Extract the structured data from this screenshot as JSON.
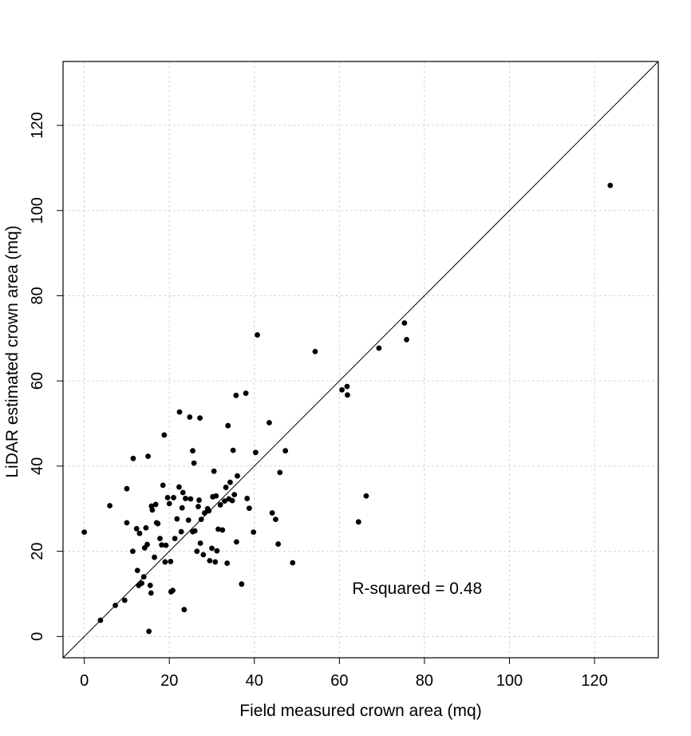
{
  "chart_data": {
    "type": "scatter",
    "title": "",
    "xlabel": "Field measured crown area (mq)",
    "ylabel": "LiDAR estimated crown area (mq)",
    "xlim": [
      -5,
      135
    ],
    "ylim": [
      -5,
      135
    ],
    "xticks": [
      0,
      20,
      40,
      60,
      80,
      100,
      120
    ],
    "yticks": [
      0,
      20,
      40,
      60,
      80,
      100,
      120
    ],
    "grid": true,
    "reference_line": "1:1",
    "annotation": "R-squared = 0.48",
    "annotation_position": [
      63,
      10
    ],
    "points": [
      [
        0,
        24.5
      ],
      [
        3.8,
        3.8
      ],
      [
        6,
        30.7
      ],
      [
        7.3,
        7.3
      ],
      [
        9.5,
        8.5
      ],
      [
        10,
        34.7
      ],
      [
        10,
        26.7
      ],
      [
        11.4,
        20
      ],
      [
        11.5,
        41.8
      ],
      [
        12.3,
        25.3
      ],
      [
        12.5,
        15.5
      ],
      [
        12.8,
        12
      ],
      [
        13,
        24.2
      ],
      [
        13.5,
        12.5
      ],
      [
        14,
        14
      ],
      [
        14.2,
        20.8
      ],
      [
        14.5,
        25.5
      ],
      [
        14.8,
        21.6
      ],
      [
        15,
        42.3
      ],
      [
        15.2,
        1.2
      ],
      [
        15.5,
        12
      ],
      [
        15.7,
        10.2
      ],
      [
        15.8,
        30.6
      ],
      [
        16,
        29.7
      ],
      [
        16.5,
        18.6
      ],
      [
        16.8,
        31
      ],
      [
        17,
        26.7
      ],
      [
        17.3,
        26.5
      ],
      [
        17.8,
        23
      ],
      [
        18.2,
        21.5
      ],
      [
        18.5,
        35.5
      ],
      [
        18.8,
        47.3
      ],
      [
        19,
        17.5
      ],
      [
        19.2,
        21.4
      ],
      [
        19.6,
        32.6
      ],
      [
        20,
        31.2
      ],
      [
        20.3,
        17.6
      ],
      [
        20.4,
        10.5
      ],
      [
        20.8,
        10.8
      ],
      [
        21,
        32.6
      ],
      [
        21.3,
        23
      ],
      [
        21.8,
        27.6
      ],
      [
        22.3,
        35.1
      ],
      [
        22.4,
        52.7
      ],
      [
        22.8,
        24.6
      ],
      [
        23,
        30.2
      ],
      [
        23.2,
        33.8
      ],
      [
        23.5,
        6.3
      ],
      [
        23.8,
        32.4
      ],
      [
        24.5,
        27.3
      ],
      [
        24.8,
        51.5
      ],
      [
        25,
        32.3
      ],
      [
        25.5,
        43.6
      ],
      [
        25.5,
        24.6
      ],
      [
        25.8,
        40.7
      ],
      [
        26,
        24.8
      ],
      [
        26.5,
        20
      ],
      [
        26.8,
        30.5
      ],
      [
        27,
        32
      ],
      [
        27.2,
        51.3
      ],
      [
        27.3,
        21.9
      ],
      [
        27.5,
        27.5
      ],
      [
        28,
        19.2
      ],
      [
        28.3,
        29
      ],
      [
        29,
        30
      ],
      [
        29.3,
        29.5
      ],
      [
        29.5,
        17.8
      ],
      [
        30,
        20.7
      ],
      [
        30.2,
        32.8
      ],
      [
        30.5,
        38.8
      ],
      [
        30.8,
        17.5
      ],
      [
        31,
        33
      ],
      [
        31.2,
        20.1
      ],
      [
        31.5,
        25.2
      ],
      [
        32,
        30.9
      ],
      [
        32.5,
        25
      ],
      [
        33,
        31.8
      ],
      [
        33.3,
        35
      ],
      [
        33.6,
        17.2
      ],
      [
        33.8,
        49.5
      ],
      [
        34,
        32.3
      ],
      [
        34.3,
        36.2
      ],
      [
        34.8,
        31.9
      ],
      [
        35,
        43.7
      ],
      [
        35.3,
        33.3
      ],
      [
        35.7,
        56.6
      ],
      [
        35.8,
        22.2
      ],
      [
        36,
        37.7
      ],
      [
        37,
        12.3
      ],
      [
        38,
        57.1
      ],
      [
        38.3,
        32.4
      ],
      [
        38.8,
        30.1
      ],
      [
        39.8,
        24.5
      ],
      [
        40.3,
        43.2
      ],
      [
        40.7,
        70.8
      ],
      [
        43.5,
        50.2
      ],
      [
        44.2,
        29
      ],
      [
        45,
        27.5
      ],
      [
        45.6,
        21.7
      ],
      [
        46,
        38.5
      ],
      [
        47.3,
        43.6
      ],
      [
        49,
        17.3
      ],
      [
        54.3,
        66.9
      ],
      [
        60.6,
        57.9
      ],
      [
        61.8,
        58.7
      ],
      [
        61.9,
        56.7
      ],
      [
        64.5,
        26.9
      ],
      [
        66.3,
        33
      ],
      [
        69.3,
        67.7
      ],
      [
        75.3,
        73.6
      ],
      [
        75.8,
        69.7
      ],
      [
        123.7,
        105.9
      ]
    ]
  }
}
